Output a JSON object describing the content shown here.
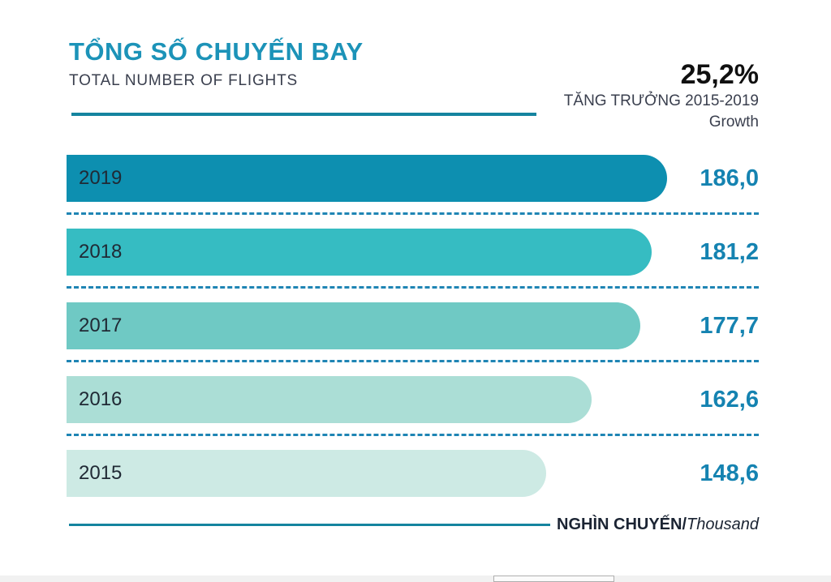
{
  "header": {
    "title": "TỔNG SỐ CHUYẾN BAY",
    "subtitle": "TOTAL NUMBER OF FLIGHTS",
    "growth": {
      "value": "25,2%",
      "label": "TĂNG TRƯỞNG 2015-2019",
      "sublabel": "Growth"
    }
  },
  "footer": {
    "unit_bold": "NGHÌN CHUYẾN/",
    "unit_italic": "Thousand"
  },
  "chart_data": {
    "type": "bar",
    "orientation": "horizontal",
    "title": "TỔNG SỐ CHUYẾN BAY / TOTAL NUMBER OF FLIGHTS",
    "categories": [
      "2019",
      "2018",
      "2017",
      "2016",
      "2015"
    ],
    "values": [
      186.0,
      181.2,
      177.7,
      162.6,
      148.6
    ],
    "value_labels": [
      "186,0",
      "181,2",
      "177,7",
      "162,6",
      "148,6"
    ],
    "unit": "NGHÌN CHUYẾN / Thousand flights",
    "xlim": [
      0,
      186
    ],
    "growth_2015_2019_pct": 25.2,
    "bar_colors": [
      "#0d8fb0",
      "#36bcc2",
      "#6fc9c4",
      "#abded6",
      "#cdeae4"
    ],
    "grid": "dashed separators between bars",
    "legend": "none"
  },
  "colors": {
    "title_accent": "#1c93b8",
    "value_text": "#1583b1",
    "rule": "#15849f",
    "separator_dash": "#1f85b4",
    "dark_text": "#3a3f4e"
  }
}
